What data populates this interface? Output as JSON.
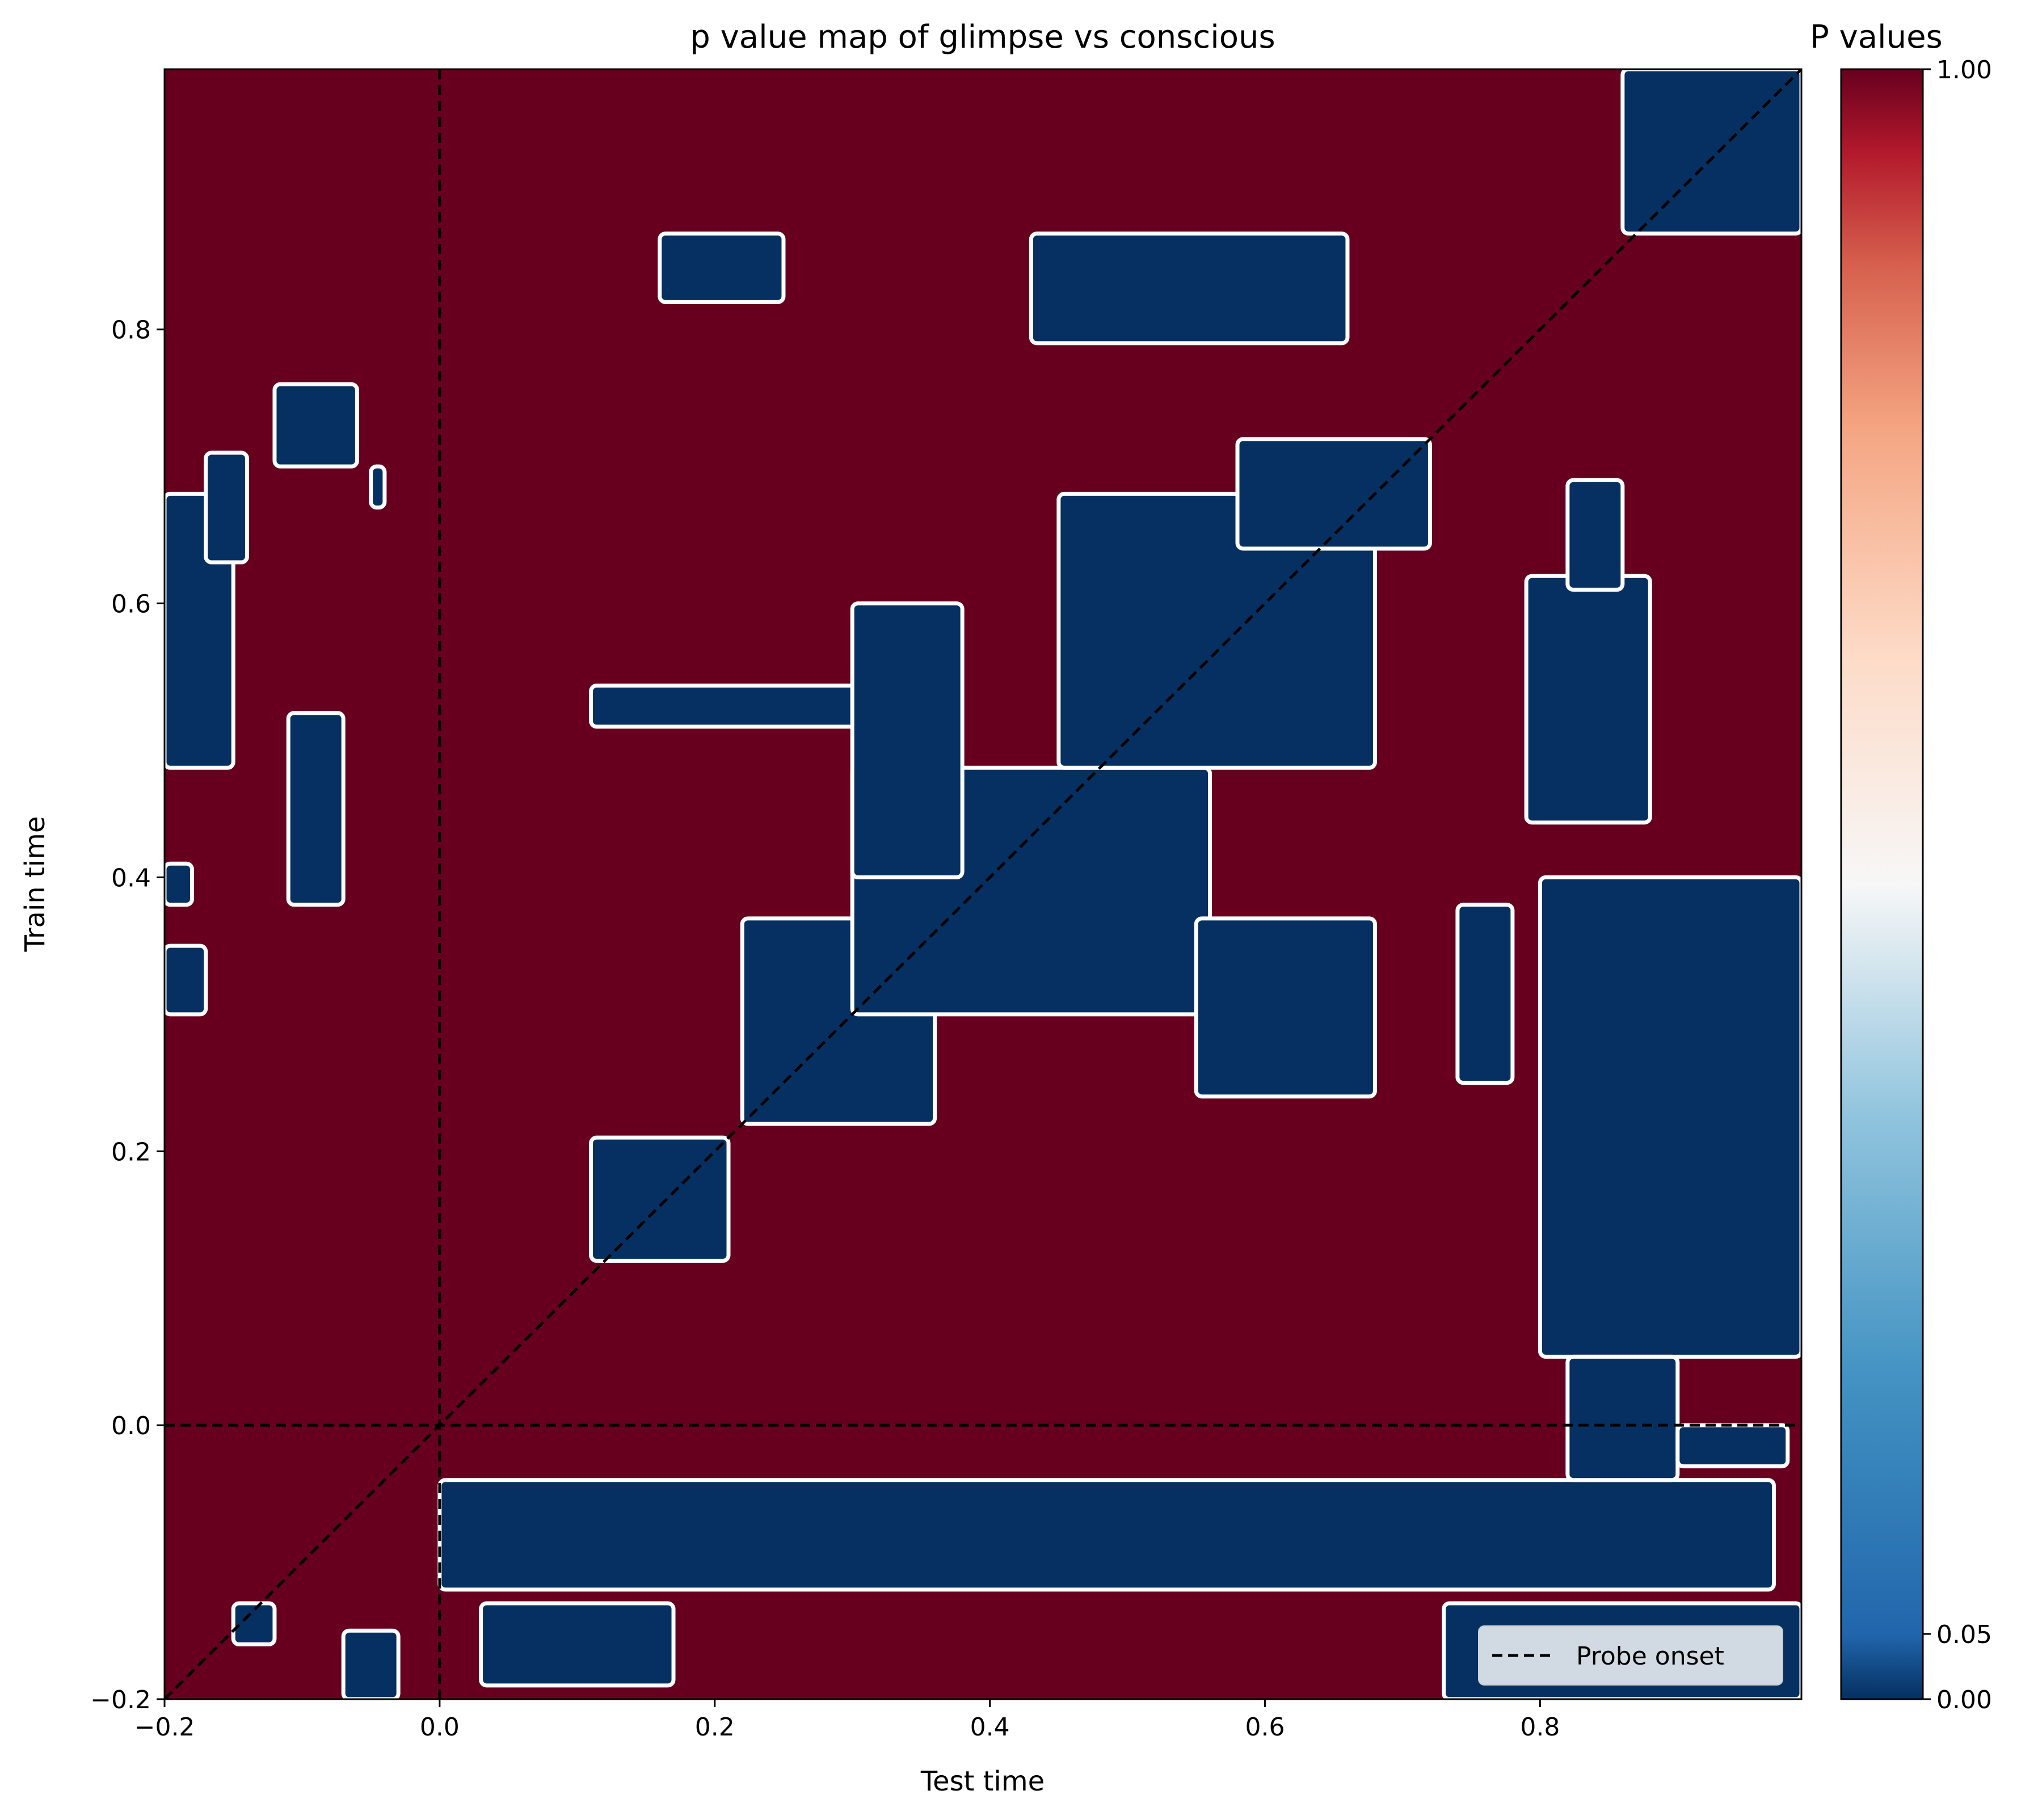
{
  "chart_data": {
    "type": "heatmap",
    "title": "p value map of glimpse vs conscious",
    "xlabel": "Test time",
    "ylabel": "Train time",
    "xlim": [
      -0.2,
      0.99
    ],
    "ylim": [
      -0.2,
      0.99
    ],
    "xticks": [
      "−0.2",
      "0.0",
      "0.2",
      "0.4",
      "0.6",
      "0.8"
    ],
    "xtick_values": [
      -0.2,
      0.0,
      0.2,
      0.4,
      0.6,
      0.8
    ],
    "yticks": [
      "−0.2",
      "0.0",
      "0.2",
      "0.4",
      "0.6",
      "0.8"
    ],
    "ytick_values": [
      -0.2,
      0.0,
      0.2,
      0.4,
      0.6,
      0.8
    ],
    "colormap": "RdBu_r",
    "colorbar": {
      "label": "P values",
      "ticks": [
        "0.00",
        "0.05",
        "1.00"
      ],
      "tick_values": [
        0.0,
        0.05,
        1.0
      ]
    },
    "colors": {
      "not_significant": "#67001f",
      "significant": "#053061",
      "outline": "#ffffff"
    },
    "reference_lines": [
      {
        "orientation": "vertical",
        "value": 0.0,
        "style": "dashed"
      },
      {
        "orientation": "horizontal",
        "value": 0.0,
        "style": "dashed"
      },
      {
        "orientation": "diagonal",
        "from": [
          -0.2,
          -0.2
        ],
        "to": [
          0.99,
          0.99
        ],
        "style": "dashed"
      }
    ],
    "legend": {
      "entries": [
        "Probe onset"
      ],
      "placement": "lower-right"
    },
    "significant_regions": [
      {
        "x": [
          0.0,
          0.97
        ],
        "y": [
          -0.12,
          -0.04
        ]
      },
      {
        "x": [
          0.03,
          0.17
        ],
        "y": [
          -0.19,
          -0.13
        ]
      },
      {
        "x": [
          0.73,
          0.99
        ],
        "y": [
          -0.2,
          -0.13
        ]
      },
      {
        "x": [
          0.22,
          0.36
        ],
        "y": [
          0.22,
          0.37
        ]
      },
      {
        "x": [
          0.3,
          0.56
        ],
        "y": [
          0.3,
          0.48
        ]
      },
      {
        "x": [
          0.45,
          0.68
        ],
        "y": [
          0.48,
          0.68
        ]
      },
      {
        "x": [
          0.58,
          0.72
        ],
        "y": [
          0.64,
          0.72
        ]
      },
      {
        "x": [
          0.11,
          0.32
        ],
        "y": [
          0.51,
          0.54
        ]
      },
      {
        "x": [
          0.3,
          0.38
        ],
        "y": [
          0.4,
          0.6
        ]
      },
      {
        "x": [
          0.11,
          0.21
        ],
        "y": [
          0.12,
          0.21
        ]
      },
      {
        "x": [
          0.55,
          0.68
        ],
        "y": [
          0.24,
          0.37
        ]
      },
      {
        "x": [
          0.74,
          0.78
        ],
        "y": [
          0.25,
          0.38
        ]
      },
      {
        "x": [
          0.8,
          0.99
        ],
        "y": [
          0.05,
          0.4
        ]
      },
      {
        "x": [
          0.82,
          0.9
        ],
        "y": [
          -0.04,
          0.05
        ]
      },
      {
        "x": [
          0.9,
          0.98
        ],
        "y": [
          -0.03,
          0.0
        ]
      },
      {
        "x": [
          0.79,
          0.88
        ],
        "y": [
          0.44,
          0.62
        ]
      },
      {
        "x": [
          0.82,
          0.86
        ],
        "y": [
          0.61,
          0.69
        ]
      },
      {
        "x": [
          0.86,
          0.99
        ],
        "y": [
          0.87,
          0.99
        ]
      },
      {
        "x": [
          0.43,
          0.66
        ],
        "y": [
          0.79,
          0.87
        ]
      },
      {
        "x": [
          0.16,
          0.25
        ],
        "y": [
          0.82,
          0.87
        ]
      },
      {
        "x": [
          -0.2,
          -0.15
        ],
        "y": [
          0.48,
          0.68
        ]
      },
      {
        "x": [
          -0.2,
          -0.17
        ],
        "y": [
          0.3,
          0.35
        ]
      },
      {
        "x": [
          -0.2,
          -0.18
        ],
        "y": [
          0.38,
          0.41
        ]
      },
      {
        "x": [
          -0.11,
          -0.07
        ],
        "y": [
          0.38,
          0.52
        ]
      },
      {
        "x": [
          -0.12,
          -0.06
        ],
        "y": [
          0.7,
          0.76
        ]
      },
      {
        "x": [
          -0.17,
          -0.14
        ],
        "y": [
          0.63,
          0.71
        ]
      },
      {
        "x": [
          -0.07,
          -0.03
        ],
        "y": [
          -0.2,
          -0.15
        ]
      },
      {
        "x": [
          -0.15,
          -0.12
        ],
        "y": [
          -0.16,
          -0.13
        ]
      },
      {
        "x": [
          -0.05,
          -0.04
        ],
        "y": [
          0.67,
          0.7
        ]
      }
    ]
  }
}
